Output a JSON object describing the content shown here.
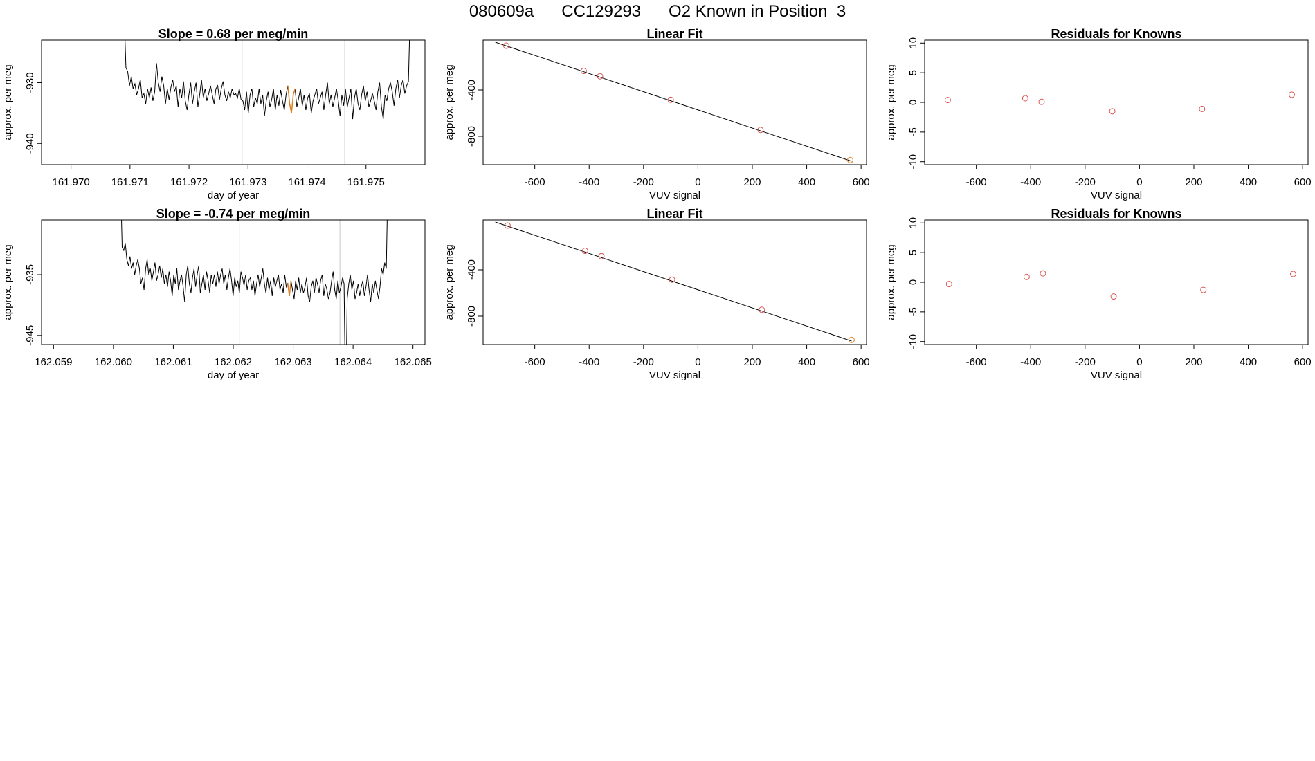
{
  "figure": {
    "title_parts": [
      "080609a",
      "CC129293",
      "O2 Known in Position  3"
    ],
    "title_separator": "      ",
    "colors": {
      "axis": "#000000",
      "line": "#000000",
      "vline": "#c8c8c8",
      "known_point": "#d9534f",
      "fit_point": "#e08020",
      "highlight": "#e08020"
    }
  },
  "chart_data": [
    {
      "type": "line",
      "title": "Slope =  0.68  per meg/min",
      "xlabel": "day of year",
      "ylabel": "approx. per meg",
      "xlim": [
        161.9695,
        161.976
      ],
      "ylim": [
        -943.5,
        -923.0
      ],
      "xticks": [
        161.97,
        161.971,
        161.972,
        161.973,
        161.974,
        161.975
      ],
      "xtick_labels": [
        "161.970",
        "161.971",
        "161.972",
        "161.973",
        "161.974",
        "161.975"
      ],
      "yticks": [
        -940,
        -930
      ],
      "ytick_labels": [
        "-940",
        "-930"
      ],
      "vlines": [
        161.9729,
        161.97464
      ],
      "highlight_x": [
        161.97365,
        161.9738
      ],
      "series": [
        {
          "x_start": 161.9709,
          "x_end": 161.97575,
          "values": [
            -918,
            -927.5,
            -928.2,
            -930.5,
            -929.0,
            -931.0,
            -930.2,
            -932.0,
            -931.0,
            -929.5,
            -932.5,
            -931.8,
            -933.5,
            -931.0,
            -932.5,
            -930.8,
            -933.0,
            -931.5,
            -926.8,
            -930.0,
            -931.5,
            -929.0,
            -930.5,
            -933.5,
            -931.0,
            -932.8,
            -930.8,
            -929.5,
            -931.5,
            -930.5,
            -934.0,
            -931.0,
            -932.5,
            -929.8,
            -933.0,
            -934.5,
            -932.0,
            -930.0,
            -933.5,
            -931.5,
            -930.0,
            -934.0,
            -932.0,
            -929.5,
            -932.5,
            -931.0,
            -933.0,
            -931.8,
            -930.5,
            -932.0,
            -933.5,
            -931.0,
            -930.5,
            -932.8,
            -931.0,
            -929.8,
            -932.0,
            -933.0,
            -931.5,
            -932.5,
            -931.0,
            -932.0,
            -931.8,
            -932.5,
            -931.0,
            -932.8,
            -933.0,
            -934.5,
            -931.5,
            -935.0,
            -932.0,
            -931.0,
            -934.0,
            -932.5,
            -933.5,
            -931.0,
            -933.5,
            -932.0,
            -935.5,
            -933.0,
            -931.5,
            -934.0,
            -932.8,
            -931.0,
            -934.5,
            -932.0,
            -933.8,
            -931.2,
            -933.0,
            -934.5,
            -932.0,
            -930.5,
            -933.5,
            -935.0,
            -932.0,
            -931.0,
            -934.0,
            -932.5,
            -931.0,
            -933.8,
            -932.0,
            -934.5,
            -932.5,
            -931.8,
            -935.0,
            -933.0,
            -932.0,
            -931.0,
            -933.5,
            -932.5,
            -931.5,
            -934.5,
            -932.0,
            -930.0,
            -933.5,
            -932.0,
            -934.0,
            -932.5,
            -931.0,
            -933.0,
            -935.5,
            -932.0,
            -933.8,
            -931.0,
            -934.0,
            -932.5,
            -931.0,
            -936.0,
            -932.5,
            -931.0,
            -933.5,
            -934.5,
            -932.0,
            -930.5,
            -933.0,
            -931.5,
            -934.0,
            -933.0,
            -931.8,
            -933.0,
            -934.5,
            -931.5,
            -930.0,
            -934.0,
            -936.0,
            -932.0,
            -933.0,
            -931.0,
            -930.0,
            -931.5,
            -933.8,
            -931.0,
            -929.5,
            -932.5,
            -930.5,
            -929.5,
            -931.8,
            -930.5,
            -929.8,
            -918
          ]
        }
      ]
    },
    {
      "type": "scatter",
      "title": "Linear Fit",
      "xlabel": "VUV signal",
      "ylabel": "approx. per meg",
      "xlim": [
        -790,
        620
      ],
      "ylim": [
        -1045,
        30
      ],
      "xticks": [
        -600,
        -400,
        -200,
        0,
        200,
        400,
        600
      ],
      "xtick_labels": [
        "-600",
        "-400",
        "-200",
        "0",
        "200",
        "400",
        "600"
      ],
      "yticks": [
        -800,
        -400
      ],
      "ytick_labels": [
        "-800",
        "-400"
      ],
      "fit_line": {
        "x": [
          -745,
          565
        ],
        "y": [
          12,
          -1015
        ]
      },
      "points": [
        {
          "x": -705,
          "y": -18,
          "role": "known"
        },
        {
          "x": -420,
          "y": -236,
          "role": "known"
        },
        {
          "x": -360,
          "y": -282,
          "role": "known"
        },
        {
          "x": -100,
          "y": -485,
          "role": "known"
        },
        {
          "x": 230,
          "y": -745,
          "role": "known"
        },
        {
          "x": 560,
          "y": -1005,
          "role": "fit"
        }
      ]
    },
    {
      "type": "scatter",
      "title": "Residuals for Knowns",
      "xlabel": "VUV signal",
      "ylabel": "approx. per meg",
      "xlim": [
        -790,
        620
      ],
      "ylim": [
        -10.5,
        10.5
      ],
      "xticks": [
        -600,
        -400,
        -200,
        0,
        200,
        400,
        600
      ],
      "xtick_labels": [
        "-600",
        "-400",
        "-200",
        "0",
        "200",
        "400",
        "600"
      ],
      "yticks": [
        -10,
        -5,
        0,
        5,
        10
      ],
      "ytick_labels": [
        "-10",
        "-5",
        "0",
        "5",
        "10"
      ],
      "points": [
        {
          "x": -705,
          "y": 0.4,
          "role": "known"
        },
        {
          "x": -420,
          "y": 0.7,
          "role": "known"
        },
        {
          "x": -360,
          "y": 0.1,
          "role": "known"
        },
        {
          "x": -100,
          "y": -1.5,
          "role": "known"
        },
        {
          "x": 230,
          "y": -1.1,
          "role": "known"
        },
        {
          "x": 560,
          "y": 1.3,
          "role": "known"
        }
      ]
    },
    {
      "type": "line",
      "title": "Slope =  -0.74  per meg/min",
      "xlabel": "day of year",
      "ylabel": "approx. per meg",
      "xlim": [
        162.0588,
        162.0652
      ],
      "ylim": [
        -946.5,
        -926.0
      ],
      "xticks": [
        162.059,
        162.06,
        162.061,
        162.062,
        162.063,
        162.064,
        162.065
      ],
      "xtick_labels": [
        "162.059",
        "162.060",
        "162.061",
        "162.062",
        "162.063",
        "162.064",
        "162.065"
      ],
      "yticks": [
        -945,
        -935
      ],
      "ytick_labels": [
        "-945",
        "-935"
      ],
      "vlines": [
        162.0621,
        162.06378
      ],
      "highlight_x": [
        162.0629,
        162.06298
      ],
      "series": [
        {
          "x_start": 162.06012,
          "x_end": 162.06458,
          "values": [
            -920,
            -930.5,
            -931.0,
            -929.8,
            -932.5,
            -933.5,
            -932.0,
            -934.0,
            -933.0,
            -935.0,
            -933.5,
            -932.5,
            -934.0,
            -936.5,
            -935.5,
            -937.5,
            -934.0,
            -932.5,
            -935.0,
            -934.0,
            -936.0,
            -934.5,
            -933.0,
            -936.0,
            -935.0,
            -933.5,
            -935.5,
            -934.0,
            -936.5,
            -935.0,
            -937.0,
            -934.5,
            -936.0,
            -938.5,
            -935.0,
            -936.5,
            -934.0,
            -937.5,
            -936.0,
            -935.0,
            -937.0,
            -939.5,
            -935.0,
            -933.5,
            -936.5,
            -938.0,
            -935.5,
            -934.0,
            -937.0,
            -935.0,
            -933.5,
            -938.0,
            -936.5,
            -935.0,
            -937.5,
            -934.5,
            -936.0,
            -938.0,
            -935.0,
            -936.5,
            -935.0,
            -937.0,
            -934.5,
            -936.5,
            -935.0,
            -934.0,
            -936.5,
            -935.0,
            -937.5,
            -935.5,
            -934.0,
            -936.0,
            -938.5,
            -935.5,
            -937.0,
            -936.0,
            -938.0,
            -934.5,
            -935.5,
            -936.8,
            -935.0,
            -937.5,
            -936.0,
            -935.5,
            -937.5,
            -936.0,
            -938.5,
            -936.5,
            -935.0,
            -937.0,
            -935.5,
            -934.0,
            -936.5,
            -938.0,
            -935.5,
            -937.5,
            -936.0,
            -938.5,
            -935.5,
            -937.0,
            -936.0,
            -935.0,
            -937.5,
            -936.5,
            -938.0,
            -935.0,
            -937.0,
            -936.5,
            -938.5,
            -936.0,
            -937.5,
            -939.0,
            -936.0,
            -937.5,
            -935.5,
            -938.0,
            -936.5,
            -938.0,
            -937.0,
            -935.5,
            -938.5,
            -939.5,
            -937.0,
            -936.0,
            -938.0,
            -935.5,
            -936.5,
            -938.0,
            -936.0,
            -935.0,
            -938.5,
            -936.5,
            -937.5,
            -939.0,
            -938.0,
            -936.0,
            -934.5,
            -937.5,
            -939.0,
            -936.0,
            -938.0,
            -937.0,
            -935.5,
            -936.5,
            -958.0,
            -939.0,
            -936.5,
            -935.0,
            -937.5,
            -936.0,
            -939.0,
            -938.0,
            -936.5,
            -938.5,
            -937.0,
            -936.0,
            -938.5,
            -937.0,
            -935.0,
            -937.5,
            -939.5,
            -936.5,
            -938.0,
            -936.0,
            -937.5,
            -939.0,
            -937.0,
            -934.0,
            -935.0,
            -933.0,
            -934.0,
            -920
          ]
        }
      ]
    },
    {
      "type": "scatter",
      "title": "Linear Fit",
      "xlabel": "VUV signal",
      "ylabel": "approx. per meg",
      "xlim": [
        -790,
        620
      ],
      "ylim": [
        -1045,
        30
      ],
      "xticks": [
        -600,
        -400,
        -200,
        0,
        200,
        400,
        600
      ],
      "xtick_labels": [
        "-600",
        "-400",
        "-200",
        "0",
        "200",
        "400",
        "600"
      ],
      "yticks": [
        -800,
        -400
      ],
      "ytick_labels": [
        "-800",
        "-400"
      ],
      "fit_line": {
        "x": [
          -745,
          565
        ],
        "y": [
          12,
          -1015
        ]
      },
      "points": [
        {
          "x": -700,
          "y": -18,
          "role": "known"
        },
        {
          "x": -415,
          "y": -236,
          "role": "known"
        },
        {
          "x": -355,
          "y": -282,
          "role": "known"
        },
        {
          "x": -95,
          "y": -485,
          "role": "known"
        },
        {
          "x": 235,
          "y": -745,
          "role": "known"
        },
        {
          "x": 565,
          "y": -1005,
          "role": "fit"
        }
      ]
    },
    {
      "type": "scatter",
      "title": "Residuals for Knowns",
      "xlabel": "VUV signal",
      "ylabel": "approx. per meg",
      "xlim": [
        -790,
        620
      ],
      "ylim": [
        -10.5,
        10.5
      ],
      "xticks": [
        -600,
        -400,
        -200,
        0,
        200,
        400,
        600
      ],
      "xtick_labels": [
        "-600",
        "-400",
        "-200",
        "0",
        "200",
        "400",
        "600"
      ],
      "yticks": [
        -10,
        -5,
        0,
        5,
        10
      ],
      "ytick_labels": [
        "-10",
        "-5",
        "0",
        "5",
        "10"
      ],
      "points": [
        {
          "x": -700,
          "y": -0.3,
          "role": "known"
        },
        {
          "x": -415,
          "y": 0.9,
          "role": "known"
        },
        {
          "x": -355,
          "y": 1.5,
          "role": "known"
        },
        {
          "x": -95,
          "y": -2.4,
          "role": "known"
        },
        {
          "x": 235,
          "y": -1.3,
          "role": "known"
        },
        {
          "x": 565,
          "y": 1.4,
          "role": "known"
        }
      ]
    }
  ]
}
